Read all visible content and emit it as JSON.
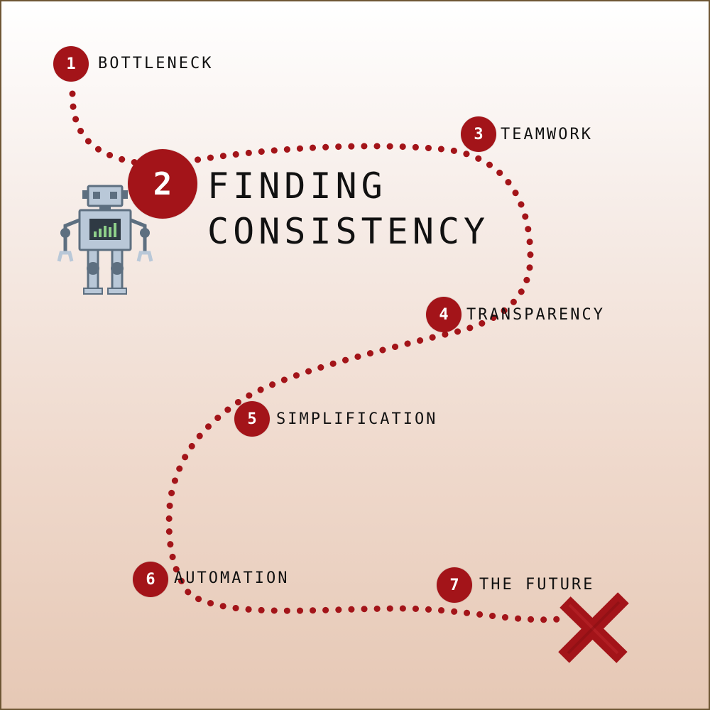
{
  "colors": {
    "accent": "#a31419",
    "text": "#111111",
    "robot_body": "#b9c8d8",
    "robot_outline": "#5d6f80"
  },
  "steps": [
    {
      "number": "1",
      "label": "BOTTLENECK"
    },
    {
      "number": "2",
      "label_line1": "FINDING",
      "label_line2": "CONSISTENCY"
    },
    {
      "number": "3",
      "label": "TEAMWORK"
    },
    {
      "number": "4",
      "label": "TRANSPARENCY"
    },
    {
      "number": "5",
      "label": "SIMPLIFICATION"
    },
    {
      "number": "6",
      "label": "AUTOMATION"
    },
    {
      "number": "7",
      "label": "THE FUTURE"
    }
  ],
  "icons": {
    "robot": "robot-icon",
    "end": "x-mark-icon"
  }
}
